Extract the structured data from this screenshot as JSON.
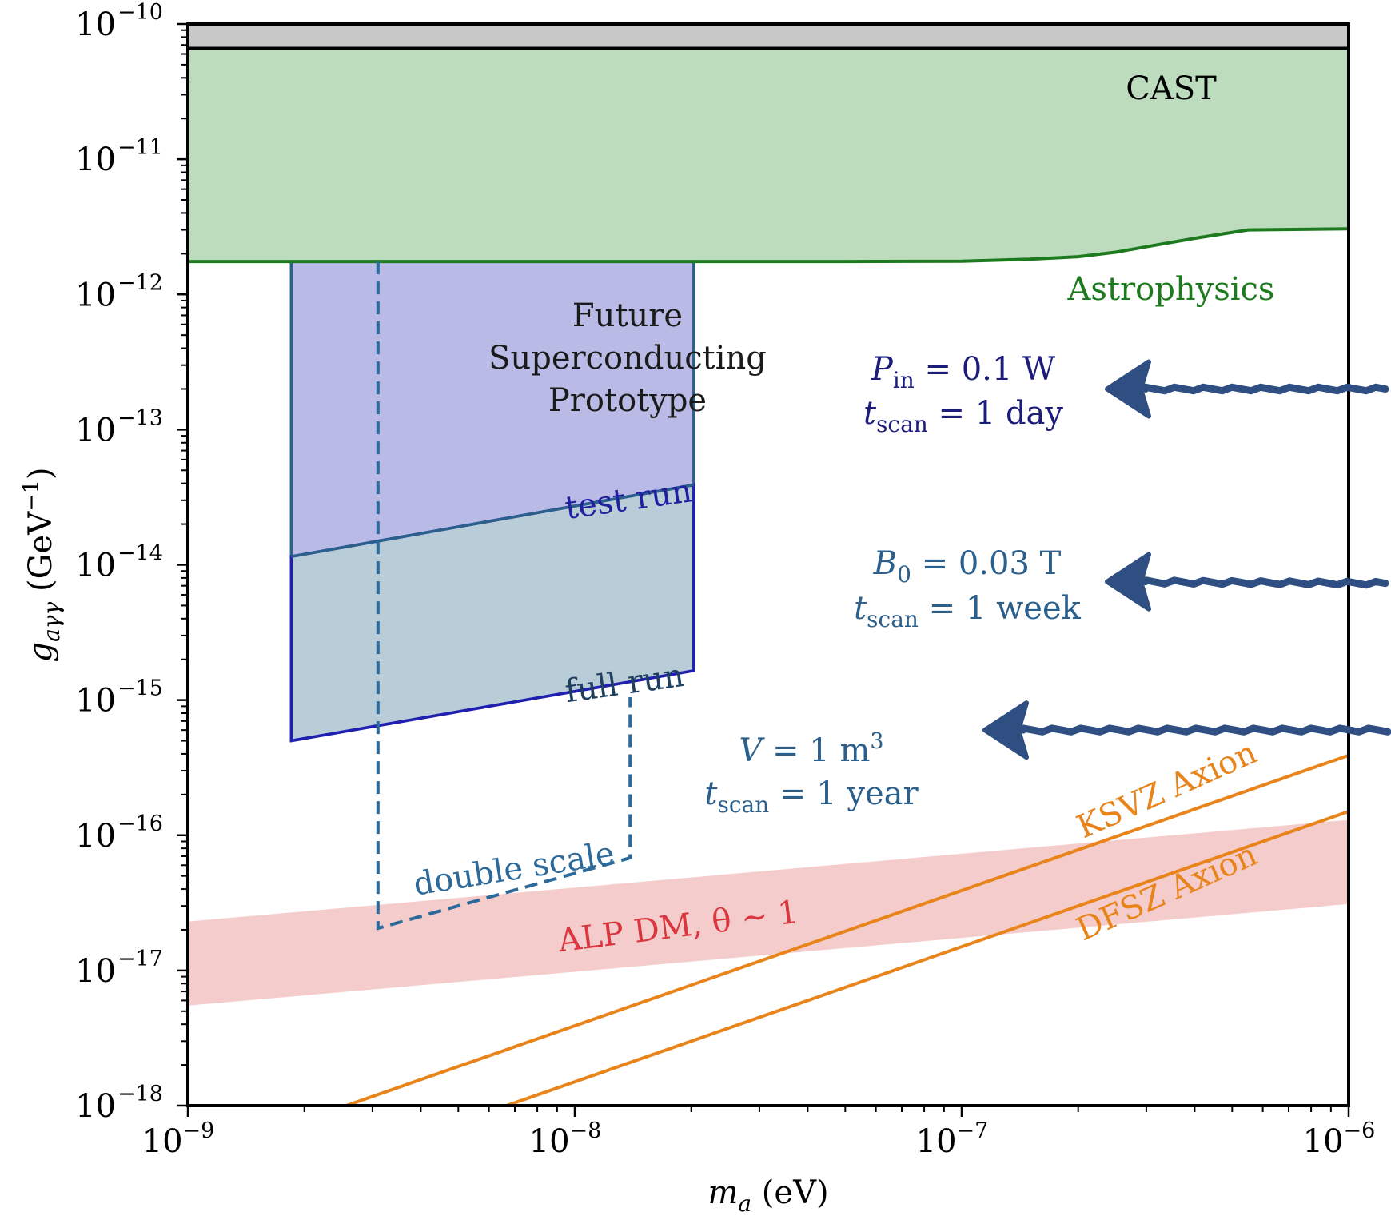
{
  "chart_data": {
    "type": "area",
    "x_axis": {
      "scale": "log",
      "range": [
        1e-09,
        1e-06
      ],
      "title_symbol": "m",
      "title_subscript": "a",
      "title_unit": "(eV)",
      "ticks": [
        {
          "value": 1e-09,
          "base": "10",
          "exp": "−9"
        },
        {
          "value": 1e-08,
          "base": "10",
          "exp": "−8"
        },
        {
          "value": 1e-07,
          "base": "10",
          "exp": "−7"
        },
        {
          "value": 1e-06,
          "base": "10",
          "exp": "−6"
        }
      ]
    },
    "y_axis": {
      "scale": "log",
      "range": [
        1e-18,
        1e-10
      ],
      "title_symbol": "g",
      "title_subscript": "aγγ",
      "title_unit": "(GeV",
      "title_unit_exp": "−1",
      "title_unit_close": ")",
      "ticks": [
        {
          "value": 1e-10,
          "base": "10",
          "exp": "−10"
        },
        {
          "value": 1e-11,
          "base": "10",
          "exp": "−11"
        },
        {
          "value": 1e-12,
          "base": "10",
          "exp": "−12"
        },
        {
          "value": 1e-13,
          "base": "10",
          "exp": "−13"
        },
        {
          "value": 1e-14,
          "base": "10",
          "exp": "−14"
        },
        {
          "value": 1e-15,
          "base": "10",
          "exp": "−15"
        },
        {
          "value": 1e-16,
          "base": "10",
          "exp": "−16"
        },
        {
          "value": 1e-17,
          "base": "10",
          "exp": "−17"
        },
        {
          "value": 1e-18,
          "base": "10",
          "exp": "−18"
        }
      ]
    },
    "grid": false,
    "regions": [
      {
        "id": "cast",
        "label": "CAST",
        "color": "#c8c8c8",
        "edge": "#000000",
        "x": [
          1e-09,
          1e-06
        ],
        "y_lower": 6.6e-11,
        "y_upper": 1e-10
      },
      {
        "id": "astro",
        "label": "Astrophysics",
        "color": "#bddcbd",
        "edge": "#1e7a1e",
        "upper": 6.6e-11,
        "curve": [
          [
            1e-09,
            1.75e-12
          ],
          [
            1e-08,
            1.75e-12
          ],
          [
            5e-08,
            1.75e-12
          ],
          [
            1e-07,
            1.76e-12
          ],
          [
            1.5e-07,
            1.82e-12
          ],
          [
            2e-07,
            1.9e-12
          ],
          [
            2.5e-07,
            2.05e-12
          ],
          [
            3e-07,
            2.25e-12
          ],
          [
            4e-07,
            2.6e-12
          ],
          [
            5.5e-07,
            3e-12
          ],
          [
            1e-06,
            3.05e-12
          ]
        ]
      },
      {
        "id": "proto",
        "label_lines": [
          "Future",
          "Superconducting",
          "Prototype"
        ],
        "color": "#b9bbe6",
        "edge": "#2b5f8c",
        "polygon": [
          [
            1.85e-09,
            1.75e-12
          ],
          [
            2.03e-08,
            1.75e-12
          ],
          [
            2.03e-08,
            3.9e-14
          ],
          [
            1.85e-09,
            1.15e-14
          ]
        ]
      },
      {
        "id": "full",
        "color": "#b8cdd8",
        "edge": "#2020b0",
        "polygon": [
          [
            1.85e-09,
            1.15e-14
          ],
          [
            2.03e-08,
            3.9e-14
          ],
          [
            2.03e-08,
            1.65e-15
          ],
          [
            1.85e-09,
            5e-16
          ]
        ]
      },
      {
        "id": "alp",
        "label": "ALP DM, θ ∼ 1",
        "color": "#f4cccc",
        "lower": [
          [
            1e-09,
            5.5e-18
          ],
          [
            1e-06,
            3.1e-17
          ]
        ],
        "upper": [
          [
            1e-09,
            2.3e-17
          ],
          [
            1e-06,
            1.3e-16
          ]
        ]
      }
    ],
    "lines": [
      {
        "id": "test-run",
        "label": "test run",
        "color": "#2020a0",
        "points": [
          [
            1.85e-09,
            1.15e-14
          ],
          [
            2.03e-08,
            3.9e-14
          ]
        ]
      },
      {
        "id": "full-run",
        "label": "full run",
        "color": "#1f3f5f",
        "points": [
          [
            1.85e-09,
            5e-16
          ],
          [
            2.03e-08,
            1.65e-15
          ]
        ]
      },
      {
        "id": "double-scale",
        "label": "double scale",
        "color": "#2b6a9a",
        "dashed": true,
        "points": [
          [
            3.1e-09,
            1.75e-12
          ],
          [
            3.1e-09,
            2.05e-17
          ],
          [
            1.39e-08,
            6.8e-17
          ],
          [
            1.39e-08,
            1.05e-15
          ]
        ]
      },
      {
        "id": "ksvz",
        "label": "KSVZ Axion",
        "color": "#e8841a",
        "points": [
          [
            1e-09,
            3.9e-19
          ],
          [
            1e-06,
            3.9e-16
          ]
        ]
      },
      {
        "id": "dfsz",
        "label": "DFSZ Axion",
        "color": "#e8841a",
        "points": [
          [
            1e-09,
            1.5e-19
          ],
          [
            1e-06,
            1.5e-16
          ]
        ]
      }
    ],
    "annotations": [
      {
        "id": "pin",
        "color": "#1c1c7a",
        "arrow_y": 2e-13,
        "line1": {
          "sym": "P",
          "sub": "in",
          "rest": " = 0.1 W"
        },
        "line2": {
          "sym": "t",
          "sub": "scan",
          "rest": " = 1 day"
        }
      },
      {
        "id": "b0",
        "color": "#2b5f8c",
        "arrow_y": 7.5e-15,
        "line1": {
          "sym": "B",
          "sub": "0",
          "rest": " = 0.03 T"
        },
        "line2": {
          "sym": "t",
          "sub": "scan",
          "rest": " = 1 week"
        }
      },
      {
        "id": "vol",
        "color": "#2b5f8c",
        "arrow_y": 6e-16,
        "line1": {
          "sym": "V",
          "sub": "",
          "rest": " = 1 m",
          "sup": "3"
        },
        "line2": {
          "sym": "t",
          "sub": "scan",
          "rest": " = 1 year"
        }
      }
    ]
  }
}
